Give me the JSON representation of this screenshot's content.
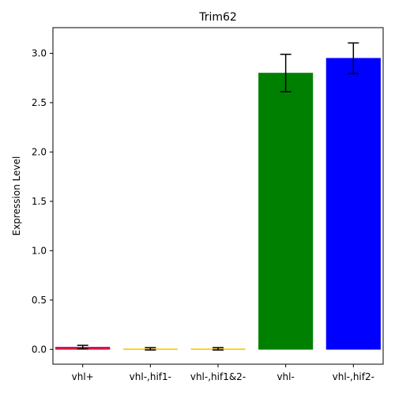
{
  "chart_data": {
    "type": "bar",
    "title": "Trim62",
    "xlabel": "",
    "ylabel": "Expression Level",
    "categories": [
      "vhl+",
      "vhl-,hif1-",
      "vhl-,hif1&2-",
      "vhl-",
      "vhl-,hif2-"
    ],
    "values": [
      0.023,
      0.006,
      0.006,
      2.8,
      2.95
    ],
    "errors": [
      0.018,
      0.012,
      0.012,
      0.19,
      0.155
    ],
    "bar_colors": [
      "#dc143c",
      "#ff8c00",
      "#ff8c00",
      "#008000",
      "#0000ff"
    ],
    "edge_colors": [
      "#9400d3",
      "#ffd700",
      "#ffd700",
      "#008000",
      "#0000ff"
    ],
    "ylim": [
      -0.15,
      3.26
    ],
    "yticks": [
      "0.0",
      "0.5",
      "1.0",
      "1.5",
      "2.0",
      "2.5",
      "3.0"
    ],
    "grid": false,
    "legend": "none"
  }
}
